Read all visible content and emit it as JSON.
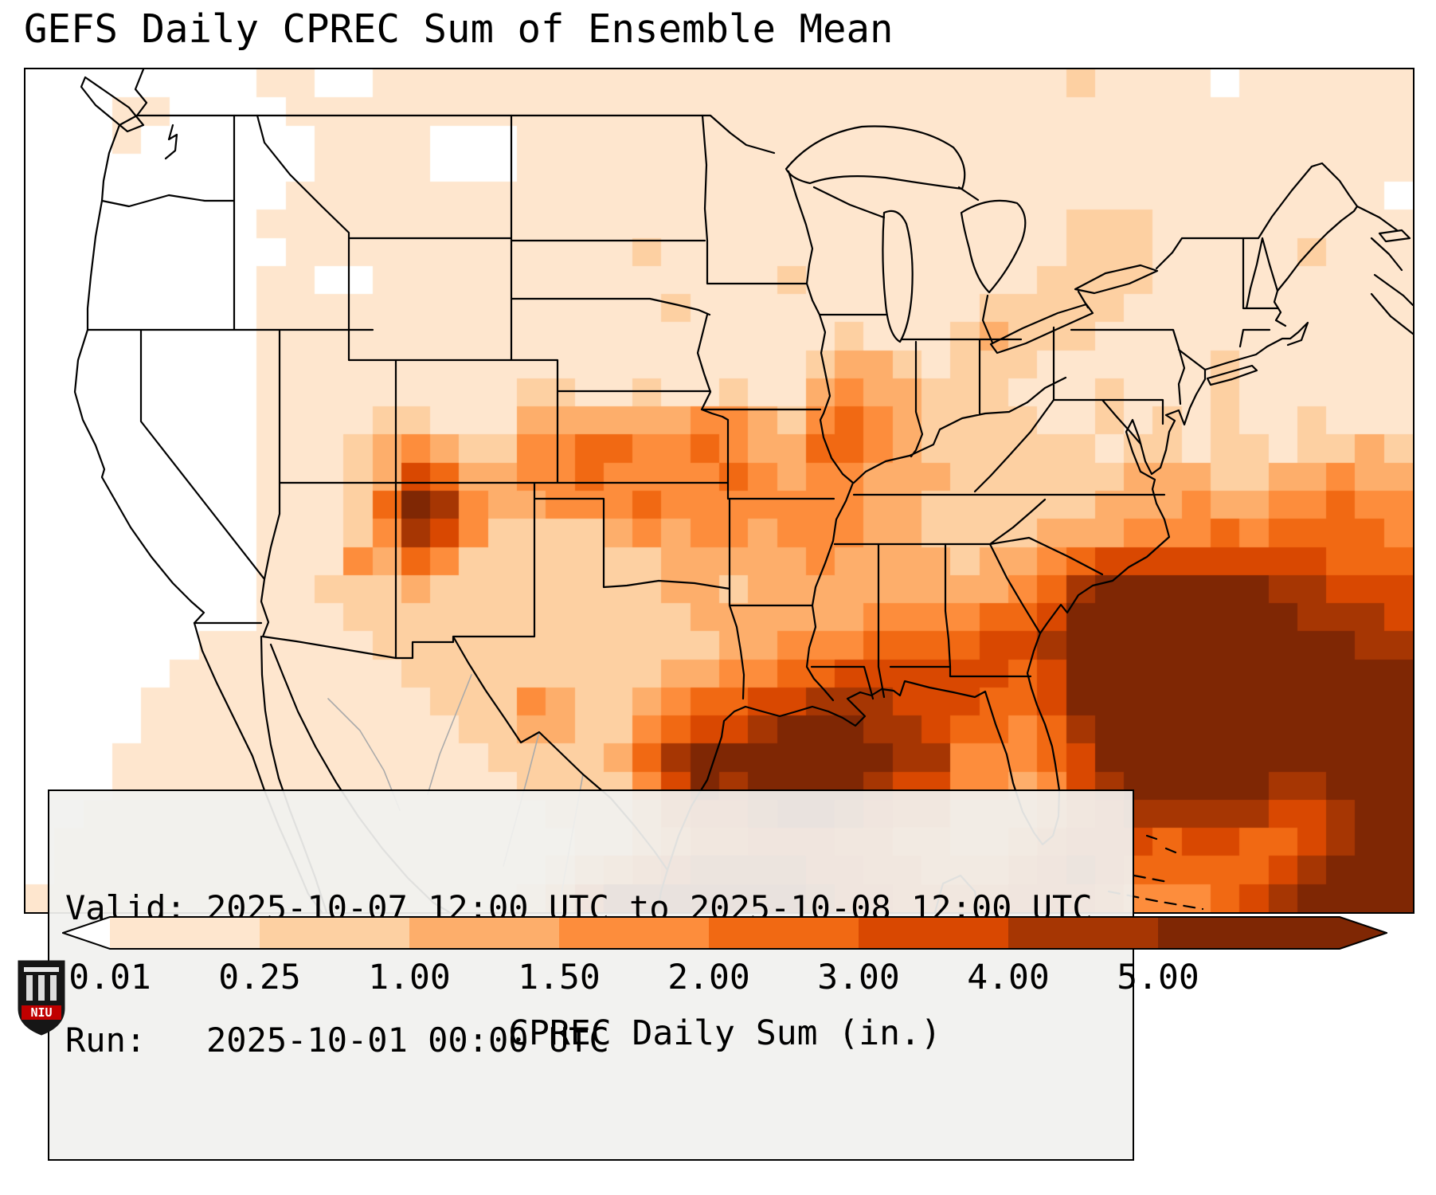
{
  "title": "GEFS Daily CPREC Sum of Ensemble Mean",
  "info_box": {
    "valid_line": "Valid: 2025-10-07 12:00 UTC to 2025-10-08 12:00 UTC",
    "run_line": "Run:   2025-10-01 00:00 UTC"
  },
  "colorbar": {
    "label": "CPREC Daily Sum (in.)",
    "ticks": [
      "0.01",
      "0.25",
      "1.00",
      "1.50",
      "2.00",
      "3.00",
      "4.00",
      "5.00"
    ],
    "extend": "both"
  },
  "logo": {
    "text": "NIU"
  },
  "chart_data": {
    "type": "heatmap",
    "title": "GEFS Daily CPREC Sum of Ensemble Mean",
    "valid_period": "2025-10-07 12:00 UTC to 2025-10-08 12:00 UTC",
    "run": "2025-10-01 00:00 UTC",
    "units": "in.",
    "colorbar_label": "CPREC Daily Sum (in.)",
    "levels": [
      0.01,
      0.25,
      1.0,
      1.5,
      2.0,
      3.0,
      4.0,
      5.0
    ],
    "palette": [
      "#ffffff",
      "#fee6ce",
      "#fdd0a2",
      "#fdae6b",
      "#fd8d3c",
      "#f16913",
      "#d94801",
      "#a63603",
      "#7f2704"
    ],
    "palette_meaning": "index 0 = below 0.01 in (white), 1..7 = between successive levels, 8 = above 5.00 in",
    "grid_encoding": "rows top-to-bottom over CONUS domain; each char is a color bin index 0-8",
    "grid_cols": 48,
    "grid_rows": 30,
    "grid": [
      "00000000 11001111 11111111 11111111 11112111 10111111",
      "00011000 01111111 11111111 11111111 11111111 11111111",
      "00010000 00111100 01111111 11111111 11111111 11111111",
      "00000000 00111100 01111111 11111111 11111111 11111111",
      "00000000 01111111 11111111 11111111 11111111 11111110",
      "00000000 11111111 11111111 11111111 11112221 11111111",
      "00000000 01111111 11111211 11111111 11112221 11112111",
      "00000000 11001111 11111111 11211111 11122221 11111111",
      "00000000 11111111 11111121 11111111 12222211 11111111",
      "00000000 11111111 11111111 11112111 23222111 11111111",
      "00000000 11111111 11111111 11123321 22211111 12111111",
      "00000000 11111111 12211211 21134332 22111211 12111111",
      "00000000 11112211 13333334 43245432 22211212 12112111",
      "00000000 11123432 24455445 43355432 22222122 12212232",
      "00000000 11123653 34454444 54344333 22222233 32233433",
      "00000000 11125874 33444544 44444332 22222333 43344544",
      "00000000 11124764 22223434 43444332 22233344 45455554",
      "00000000 11143542 22222233 33343333 23345666 66666555",
      "00000000 11222322 22222233 23333333 33457888 88877666",
      "00000000 11122222 22222223 33333444 45568888 88887776",
      "00000011 11112222 22222222 33444555 56678888 88888877",
      "00000111 11111222 22222233 44556666 66568888 88888888",
      "00001111 11111122 24322345 56677766 65568888 88888888",
      "00001111 11111112 23322456 67888776 55457888 88888888",
      "00011111 11111111 22223578 88888877 44456888 88888888",
      "00011111 11111111 12222468 78888766 44346788 88877888",
      "00111111 11111111 11222356 67887655 33345677 77766788",
      "01111111 11111111 11122345 56665544 33456665 66556788",
      "01111111 11111111 11234567 77766554 44567655 55567888",
      "11111111 11111111 12368888 88876655 55666544 45678888"
    ]
  }
}
